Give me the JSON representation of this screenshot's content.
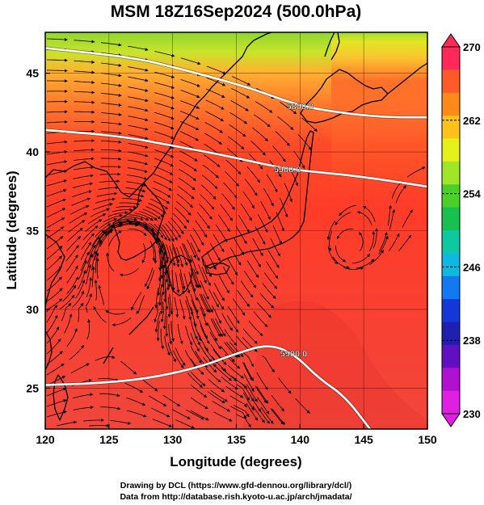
{
  "title": "MSM 18Z16Sep2024 (500.0hPa)",
  "axes": {
    "xlabel": "Longitude (degrees)",
    "ylabel": "Latitude  (degrees)",
    "xlim": [
      120,
      150
    ],
    "ylim": [
      22.4,
      47.6
    ],
    "xticks": [
      "120",
      "125",
      "130",
      "135",
      "140",
      "145",
      "150"
    ],
    "xtick_values": [
      120,
      125,
      130,
      135,
      140,
      145,
      150
    ],
    "yticks": [
      "25",
      "30",
      "35",
      "40",
      "45"
    ],
    "ytick_values": [
      25,
      30,
      35,
      40,
      45
    ]
  },
  "colorbar": {
    "labels": [
      "270",
      "262",
      "254",
      "246",
      "238",
      "230"
    ],
    "values": [
      270,
      262,
      254,
      246,
      238,
      230
    ],
    "min": 230,
    "max": 270,
    "colors": [
      "#ff2a5a",
      "#ff5a2a",
      "#ff8a1a",
      "#ffc21a",
      "#e6f01a",
      "#a0e628",
      "#4ad028",
      "#18c050",
      "#10c8a0",
      "#10b8e0",
      "#1478f0",
      "#1438d8",
      "#2020b0",
      "#6010c0",
      "#b010d0",
      "#e020e0"
    ]
  },
  "contours": [
    {
      "label": "5800.0",
      "lat_at_lon": [
        [
          120,
          46.6
        ],
        [
          127,
          46.0
        ],
        [
          131,
          45.2
        ],
        [
          136,
          44.1
        ],
        [
          140,
          42.9
        ],
        [
          144,
          42.4
        ],
        [
          147,
          42.2
        ],
        [
          150,
          42.2
        ]
      ]
    },
    {
      "label": "5900.0",
      "lat_at_lon": [
        [
          120,
          41.4
        ],
        [
          126,
          41.0
        ],
        [
          130,
          40.4
        ],
        [
          134,
          39.8
        ],
        [
          139,
          38.9
        ],
        [
          143,
          38.6
        ],
        [
          146,
          38.3
        ],
        [
          150,
          37.8
        ]
      ]
    },
    {
      "label": "5900.0",
      "lat_at_lon": [
        [
          120,
          25.2
        ],
        [
          124,
          25.3
        ],
        [
          128,
          25.6
        ],
        [
          132,
          26.3
        ],
        [
          135,
          27.2
        ],
        [
          137.5,
          27.8
        ],
        [
          139.5,
          27.2
        ],
        [
          141.5,
          25.6
        ],
        [
          143.5,
          24.5
        ],
        [
          145.5,
          22.4
        ]
      ]
    }
  ],
  "contour_labels": [
    "5800.0",
    "5900.0",
    "5900.0"
  ],
  "vortices": [
    {
      "lon": 126.8,
      "lat": 34.2,
      "rotation": "cw"
    },
    {
      "lon": 143.8,
      "lat": 33.7,
      "rotation": "ccw"
    }
  ],
  "credits": {
    "line1": "Drawing by DCL (https://www.gfd-dennou.org/library/dcl/)",
    "line2": "Data from http://database.rish.kyoto-u.ac.jp/arch/jmadata/"
  }
}
